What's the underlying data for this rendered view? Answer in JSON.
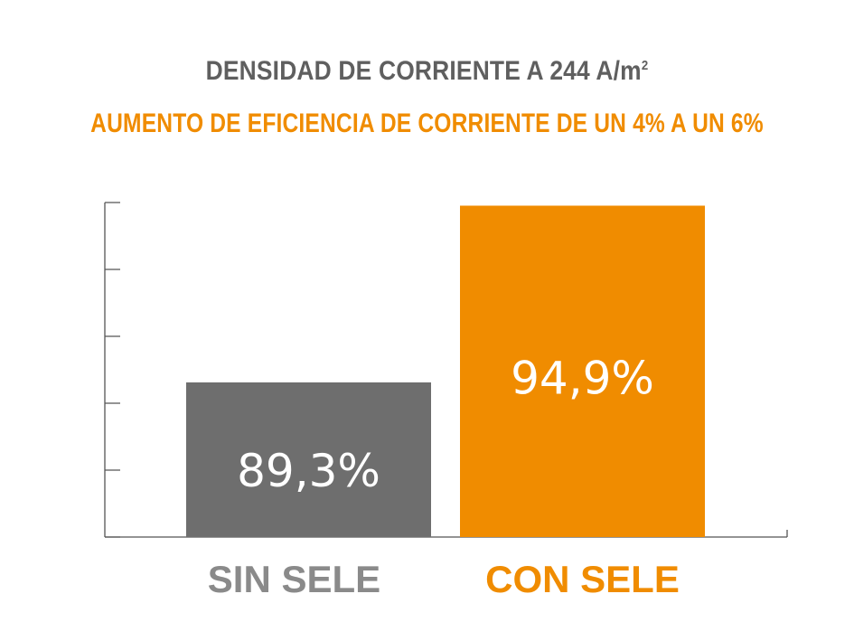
{
  "header": {
    "title_main": "DENSIDAD DE CORRIENTE A 244 A/m",
    "title_superscript": "2",
    "subtitle": "AUMENTO DE EFICIENCIA DE CORRIENTE DE UN 4% A UN 6%"
  },
  "colors": {
    "title": "#5f5f5f",
    "accent": "#f08c00",
    "bar_gray": "#6e6e6e",
    "axis": "#555555"
  },
  "chart_data": {
    "type": "bar",
    "categories": [
      "SIN SELE",
      "CON SELE"
    ],
    "values": [
      89.3,
      94.9
    ],
    "data_labels": [
      "89,3%",
      "94,9%"
    ],
    "bar_colors": [
      "#6e6e6e",
      "#f08c00"
    ],
    "category_label_colors": [
      "#8a8a8a",
      "#f08c00"
    ],
    "ylim": [
      84.4,
      95.0
    ],
    "y_tick_count": 6,
    "grid": false,
    "legend": "none"
  }
}
